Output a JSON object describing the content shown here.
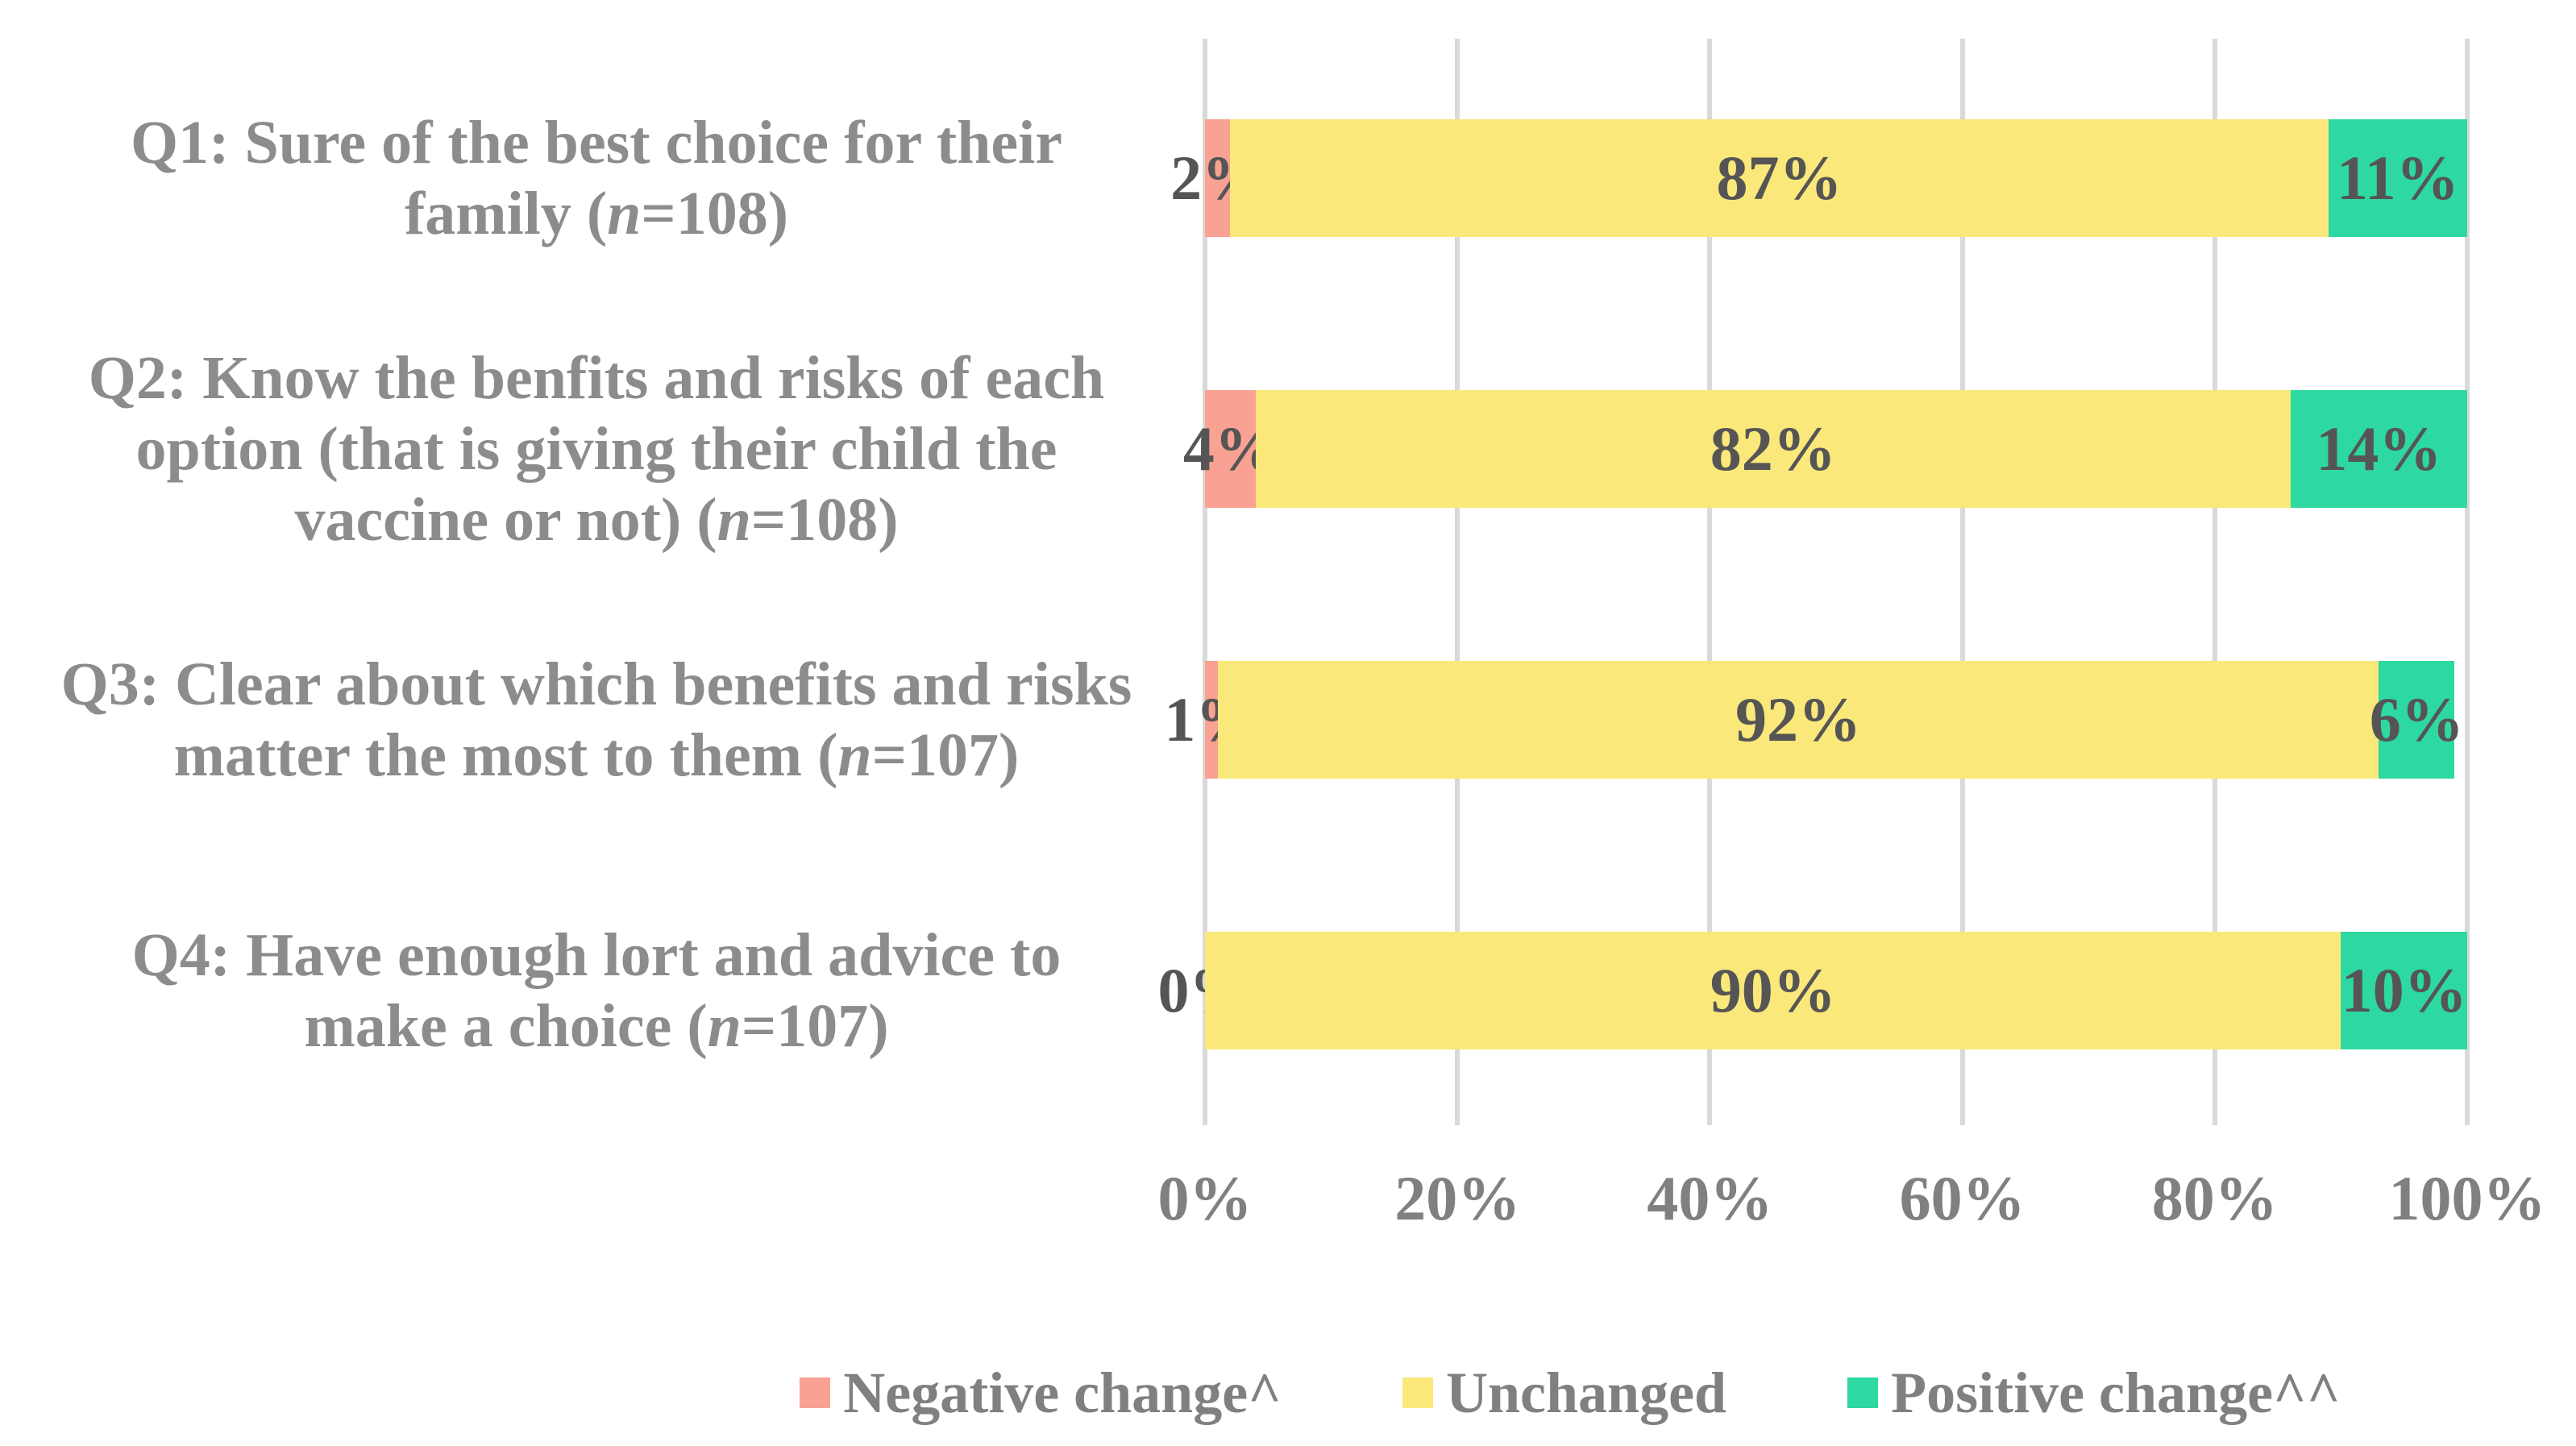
{
  "chart_data": {
    "type": "bar",
    "variant": "horizontal-stacked",
    "title": "",
    "xlabel": "",
    "ylabel": "",
    "x_axis": {
      "min": 0,
      "max": 100,
      "tick_labels": [
        "0%",
        "20%",
        "40%",
        "60%",
        "80%",
        "100%"
      ],
      "gridlines": true
    },
    "categories": [
      {
        "lines": [
          "Q1: Sure of the best choice for their",
          "family (n=108)"
        ],
        "full_label": "Q1: Sure of the best choice for their family (n=108)"
      },
      {
        "lines": [
          "Q2: Know the benfits and risks of each",
          "option (that is giving their child the",
          "vaccine or not) (n=108)"
        ],
        "full_label": "Q2: Know the benfits and risks of each option (that is giving their child the vaccine or not) (n=108)"
      },
      {
        "lines": [
          "Q3: Clear about which benefits and risks",
          "matter the most to them (n=107)"
        ],
        "full_label": "Q3: Clear about which benefits and risks matter the most to them (n=107)"
      },
      {
        "lines": [
          "Q4: Have enough lort and advice to",
          "make a choice (n=107)"
        ],
        "full_label": "Q4: Have enough lort and advice to make a choice (n=107)"
      }
    ],
    "series": [
      {
        "name": "Negative change^",
        "color": "#F9A192",
        "values": [
          2,
          4,
          1,
          0
        ],
        "labels": [
          "2%",
          "4%",
          "1%",
          "0%"
        ]
      },
      {
        "name": "Unchanged",
        "color": "#FAE87A",
        "values": [
          87,
          82,
          92,
          90
        ],
        "labels": [
          "87%",
          "82%",
          "92%",
          "90%"
        ]
      },
      {
        "name": "Positive change^^",
        "color": "#2ED8A2",
        "values": [
          11,
          14,
          6,
          10
        ],
        "labels": [
          "11%",
          "14%",
          "6%",
          "10%"
        ]
      }
    ],
    "legend": {
      "position": "bottom",
      "entries": [
        "Negative change^",
        "Unchanged",
        "Positive change^^"
      ]
    },
    "colors": {
      "background": "#FFFFFF",
      "gridline": "#D9D9D9",
      "category_text": "#8C8C8C",
      "tick_text": "#808080",
      "data_label_text": "#555555",
      "legend_text": "#808080"
    }
  }
}
